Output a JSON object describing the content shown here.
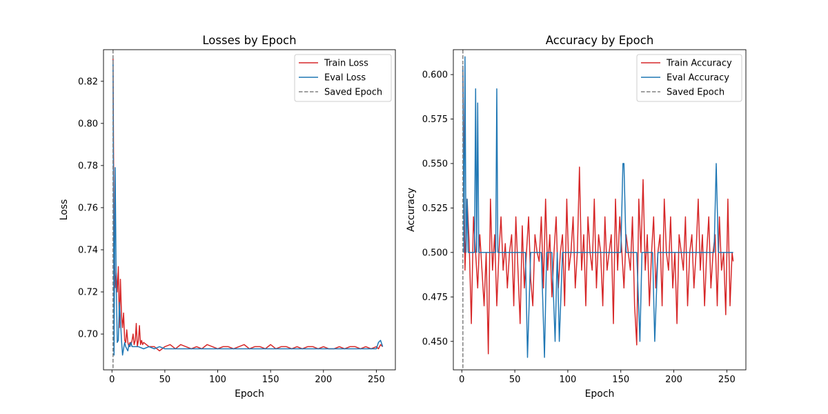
{
  "chart_data": [
    {
      "type": "line",
      "title": "Losses by Epoch",
      "xlabel": "Epoch",
      "ylabel": "Loss",
      "xlim": [
        -8,
        268
      ],
      "ylim": [
        0.683,
        0.835
      ],
      "xticks": [
        0,
        50,
        100,
        150,
        200,
        250
      ],
      "yticks": [
        0.7,
        0.72,
        0.74,
        0.76,
        0.78,
        0.8,
        0.82
      ],
      "ytick_decimals": 2,
      "grid": false,
      "legend_position": "top-right",
      "saved_epoch": 1,
      "saved_epoch_label": "Saved Epoch",
      "series": [
        {
          "name": "Train Loss",
          "color": "#d62728",
          "x": [
            1,
            2,
            3,
            4,
            5,
            6,
            7,
            8,
            9,
            10,
            11,
            12,
            13,
            14,
            15,
            16,
            17,
            18,
            19,
            20,
            21,
            22,
            23,
            24,
            25,
            26,
            27,
            28,
            29,
            30,
            35,
            40,
            45,
            50,
            55,
            60,
            65,
            70,
            75,
            80,
            85,
            90,
            95,
            100,
            105,
            110,
            115,
            120,
            125,
            130,
            135,
            140,
            145,
            150,
            155,
            160,
            165,
            170,
            175,
            180,
            185,
            190,
            195,
            200,
            205,
            210,
            215,
            220,
            225,
            230,
            235,
            240,
            245,
            250,
            252,
            254,
            256
          ],
          "values": [
            0.831,
            0.745,
            0.722,
            0.729,
            0.72,
            0.732,
            0.703,
            0.726,
            0.709,
            0.703,
            0.71,
            0.697,
            0.696,
            0.702,
            0.696,
            0.694,
            0.696,
            0.695,
            0.697,
            0.7,
            0.695,
            0.697,
            0.705,
            0.694,
            0.697,
            0.704,
            0.695,
            0.697,
            0.695,
            0.696,
            0.694,
            0.694,
            0.692,
            0.694,
            0.695,
            0.693,
            0.695,
            0.694,
            0.693,
            0.694,
            0.693,
            0.695,
            0.694,
            0.693,
            0.694,
            0.694,
            0.693,
            0.694,
            0.695,
            0.693,
            0.694,
            0.694,
            0.693,
            0.695,
            0.693,
            0.694,
            0.694,
            0.693,
            0.694,
            0.693,
            0.694,
            0.694,
            0.693,
            0.694,
            0.693,
            0.693,
            0.694,
            0.693,
            0.694,
            0.694,
            0.693,
            0.694,
            0.693,
            0.694,
            0.693,
            0.695,
            0.694
          ]
        },
        {
          "name": "Eval Loss",
          "color": "#1f77b4",
          "x": [
            1,
            2,
            3,
            4,
            5,
            6,
            7,
            8,
            9,
            10,
            11,
            12,
            13,
            14,
            15,
            16,
            17,
            18,
            19,
            20,
            22,
            25,
            30,
            35,
            40,
            45,
            50,
            60,
            70,
            80,
            90,
            100,
            110,
            120,
            130,
            140,
            150,
            160,
            170,
            180,
            190,
            200,
            210,
            220,
            230,
            240,
            245,
            250,
            252,
            254,
            256
          ],
          "values": [
            0.83,
            0.69,
            0.779,
            0.725,
            0.696,
            0.697,
            0.715,
            0.707,
            0.697,
            0.69,
            0.693,
            0.696,
            0.694,
            0.693,
            0.692,
            0.695,
            0.694,
            0.696,
            0.694,
            0.694,
            0.694,
            0.694,
            0.693,
            0.694,
            0.693,
            0.694,
            0.693,
            0.693,
            0.693,
            0.693,
            0.693,
            0.693,
            0.693,
            0.693,
            0.693,
            0.693,
            0.693,
            0.693,
            0.693,
            0.693,
            0.693,
            0.693,
            0.693,
            0.693,
            0.693,
            0.693,
            0.693,
            0.693,
            0.696,
            0.697,
            0.694
          ]
        }
      ]
    },
    {
      "type": "line",
      "title": "Accuracy by Epoch",
      "xlabel": "Epoch",
      "ylabel": "Accuracy",
      "xlim": [
        -8,
        268
      ],
      "ylim": [
        0.434,
        0.614
      ],
      "xticks": [
        0,
        50,
        100,
        150,
        200,
        250
      ],
      "yticks": [
        0.45,
        0.475,
        0.5,
        0.525,
        0.55,
        0.575,
        0.6
      ],
      "ytick_decimals": 3,
      "grid": false,
      "legend_position": "top-right",
      "saved_epoch": 1,
      "saved_epoch_label": "Saved Epoch",
      "series": [
        {
          "name": "Train Accuracy",
          "color": "#d62728",
          "x": [
            1,
            3,
            5,
            7,
            9,
            11,
            13,
            15,
            17,
            19,
            21,
            23,
            25,
            27,
            29,
            31,
            33,
            35,
            37,
            39,
            41,
            43,
            45,
            47,
            49,
            51,
            53,
            55,
            57,
            59,
            61,
            63,
            65,
            67,
            69,
            71,
            73,
            75,
            77,
            79,
            81,
            83,
            85,
            87,
            89,
            91,
            93,
            95,
            97,
            99,
            101,
            103,
            105,
            107,
            109,
            111,
            113,
            115,
            117,
            119,
            121,
            123,
            125,
            127,
            129,
            131,
            133,
            135,
            137,
            139,
            141,
            143,
            145,
            147,
            149,
            151,
            153,
            155,
            157,
            159,
            161,
            163,
            165,
            167,
            169,
            171,
            173,
            175,
            177,
            179,
            181,
            183,
            185,
            187,
            189,
            191,
            193,
            195,
            197,
            199,
            201,
            203,
            205,
            207,
            209,
            211,
            213,
            215,
            217,
            219,
            221,
            223,
            225,
            227,
            229,
            231,
            233,
            235,
            237,
            239,
            241,
            243,
            245,
            247,
            249,
            251,
            253,
            255,
            256
          ],
          "values": [
            0.605,
            0.49,
            0.53,
            0.505,
            0.46,
            0.52,
            0.5,
            0.48,
            0.51,
            0.49,
            0.47,
            0.5,
            0.443,
            0.53,
            0.49,
            0.51,
            0.47,
            0.5,
            0.52,
            0.49,
            0.505,
            0.48,
            0.5,
            0.51,
            0.47,
            0.52,
            0.49,
            0.46,
            0.515,
            0.48,
            0.5,
            0.52,
            0.485,
            0.47,
            0.51,
            0.5,
            0.495,
            0.52,
            0.48,
            0.53,
            0.49,
            0.51,
            0.475,
            0.5,
            0.52,
            0.48,
            0.5,
            0.51,
            0.47,
            0.53,
            0.49,
            0.5,
            0.52,
            0.48,
            0.5,
            0.548,
            0.49,
            0.51,
            0.47,
            0.52,
            0.5,
            0.49,
            0.53,
            0.48,
            0.51,
            0.5,
            0.47,
            0.52,
            0.49,
            0.5,
            0.51,
            0.46,
            0.53,
            0.49,
            0.52,
            0.5,
            0.48,
            0.51,
            0.5,
            0.49,
            0.52,
            0.47,
            0.448,
            0.53,
            0.5,
            0.541,
            0.49,
            0.51,
            0.47,
            0.5,
            0.52,
            0.48,
            0.5,
            0.51,
            0.47,
            0.53,
            0.5,
            0.49,
            0.52,
            0.48,
            0.5,
            0.46,
            0.51,
            0.5,
            0.49,
            0.52,
            0.47,
            0.5,
            0.51,
            0.48,
            0.5,
            0.53,
            0.49,
            0.51,
            0.47,
            0.5,
            0.52,
            0.48,
            0.5,
            0.51,
            0.47,
            0.52,
            0.49,
            0.5,
            0.465,
            0.53,
            0.47,
            0.5,
            0.495
          ]
        },
        {
          "name": "Eval Accuracy",
          "color": "#1f77b4",
          "x": [
            1,
            2,
            3,
            4,
            5,
            6,
            8,
            10,
            12,
            13,
            14,
            15,
            16,
            17,
            18,
            19,
            20,
            22,
            24,
            26,
            28,
            30,
            32,
            33,
            34,
            36,
            38,
            40,
            45,
            50,
            55,
            60,
            62,
            65,
            68,
            70,
            75,
            78,
            80,
            85,
            88,
            90,
            92,
            95,
            100,
            105,
            110,
            115,
            120,
            125,
            130,
            135,
            140,
            145,
            150,
            152,
            153,
            155,
            160,
            162,
            165,
            168,
            170,
            175,
            178,
            180,
            182,
            185,
            190,
            195,
            200,
            205,
            210,
            215,
            220,
            225,
            228,
            230,
            235,
            238,
            240,
            242,
            245,
            250,
            253,
            256
          ],
          "values": [
            0.605,
            0.5,
            0.61,
            0.5,
            0.53,
            0.5,
            0.5,
            0.5,
            0.5,
            0.592,
            0.5,
            0.584,
            0.5,
            0.5,
            0.5,
            0.5,
            0.5,
            0.5,
            0.5,
            0.5,
            0.5,
            0.5,
            0.5,
            0.592,
            0.5,
            0.5,
            0.5,
            0.5,
            0.5,
            0.5,
            0.5,
            0.5,
            0.441,
            0.5,
            0.5,
            0.5,
            0.5,
            0.441,
            0.5,
            0.5,
            0.45,
            0.5,
            0.45,
            0.5,
            0.5,
            0.5,
            0.5,
            0.5,
            0.5,
            0.5,
            0.5,
            0.5,
            0.5,
            0.5,
            0.5,
            0.55,
            0.55,
            0.5,
            0.5,
            0.5,
            0.5,
            0.45,
            0.5,
            0.5,
            0.5,
            0.5,
            0.45,
            0.5,
            0.5,
            0.5,
            0.5,
            0.5,
            0.5,
            0.5,
            0.5,
            0.5,
            0.5,
            0.5,
            0.5,
            0.5,
            0.55,
            0.5,
            0.5,
            0.5,
            0.5,
            0.5
          ]
        }
      ]
    }
  ]
}
